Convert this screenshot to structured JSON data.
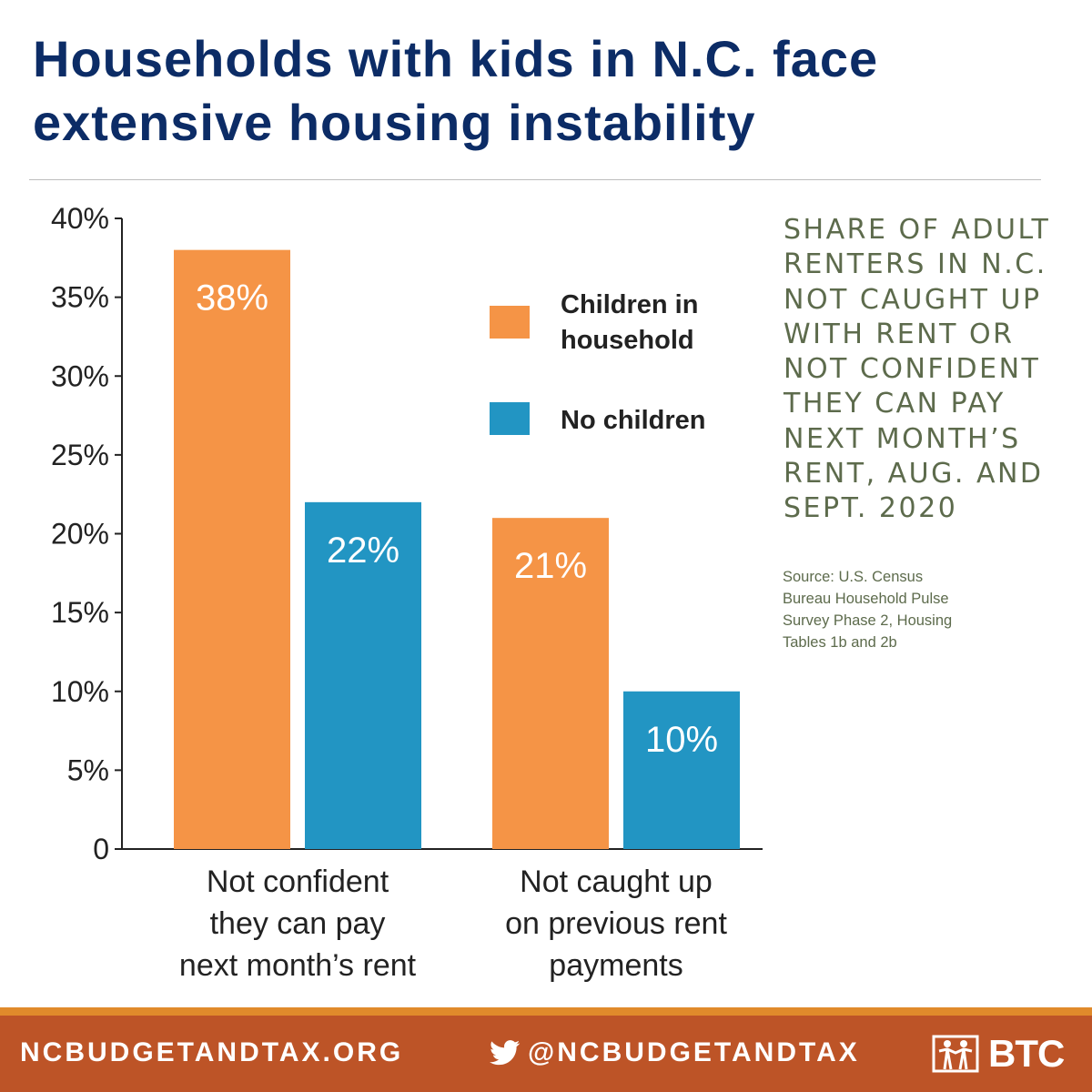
{
  "header": {
    "title_lines": [
      "Households with kids in N.C. face",
      "extensive housing instability"
    ]
  },
  "side_panel": {
    "title_lines": [
      "SHARE OF ADULT",
      "RENTERS IN N.C.",
      "NOT CAUGHT UP",
      "WITH RENT OR",
      "NOT CONFIDENT",
      "THEY CAN PAY",
      "NEXT MONTH’S",
      "RENT, AUG. AND",
      "SEPT. 2020"
    ],
    "source_lines": [
      "Source: U.S. Census",
      "Bureau Household Pulse",
      "Survey Phase 2, Housing",
      "Tables 1b and 2b"
    ]
  },
  "chart_data": {
    "type": "bar",
    "categories": [
      [
        "Not confident",
        "they can pay",
        "next month’s rent"
      ],
      [
        "Not caught up",
        "on previous rent",
        "payments"
      ]
    ],
    "series": [
      {
        "name": "Children in household",
        "legend_lines": [
          "Children in",
          "household"
        ],
        "values": [
          38,
          21
        ],
        "labels": [
          "38%",
          "21%"
        ],
        "color": "#f59446"
      },
      {
        "name": "No children",
        "legend_lines": [
          "No children"
        ],
        "values": [
          22,
          10
        ],
        "labels": [
          "22%",
          "10%"
        ],
        "color": "#2295c3"
      }
    ],
    "yticks": [
      {
        "value": 0,
        "label": "0"
      },
      {
        "value": 5,
        "label": "5%"
      },
      {
        "value": 10,
        "label": "10%"
      },
      {
        "value": 15,
        "label": "15%"
      },
      {
        "value": 20,
        "label": "20%"
      },
      {
        "value": 25,
        "label": "25%"
      },
      {
        "value": 30,
        "label": "30%"
      },
      {
        "value": 35,
        "label": "35%"
      },
      {
        "value": 40,
        "label": "40%"
      }
    ],
    "ylim": [
      0,
      40
    ],
    "grid": false,
    "legend_position": "top-right"
  },
  "footer": {
    "website": "NCBUDGETANDTAX.ORG",
    "twitter_handle": "@NCBUDGETANDTAX",
    "twitter_icon": "twitter-bird-icon",
    "logo_text": "BTC",
    "logo_icon": "nc-justice-center-figures-icon",
    "background_color": "#bd5427",
    "stripe_color": "#e08a2b"
  }
}
